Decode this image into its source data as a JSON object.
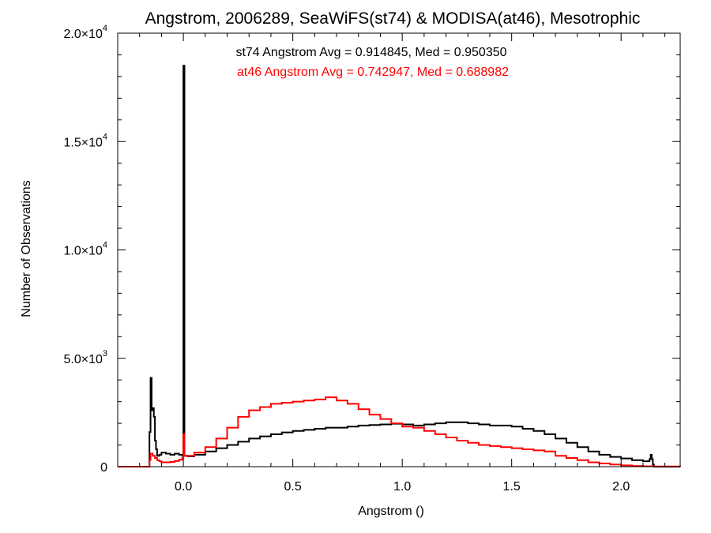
{
  "chart_data": {
    "type": "line",
    "title": "Angstrom, 2006289, SeaWiFS(st74) & MODISA(at46), Mesotrophic",
    "xlabel": "Angstrom ()",
    "ylabel": "Number of Observations",
    "xlim": [
      -0.3,
      2.27
    ],
    "ylim": [
      0,
      20000
    ],
    "x_ticks": [
      0.0,
      0.5,
      1.0,
      1.5,
      2.0
    ],
    "x_tick_labels": [
      "0.0",
      "0.5",
      "1.0",
      "1.5",
      "2.0"
    ],
    "y_ticks": [
      0,
      5000,
      10000,
      15000,
      20000
    ],
    "y_tick_labels": [
      {
        "mant": "0",
        "exp": ""
      },
      {
        "mant": "5.0×10",
        "exp": "3"
      },
      {
        "mant": "1.0×10",
        "exp": "4"
      },
      {
        "mant": "1.5×10",
        "exp": "4"
      },
      {
        "mant": "2.0×10",
        "exp": "4"
      }
    ],
    "annotations": [
      {
        "text": "st74 Angstrom Avg = 0.914845, Med = 0.950350",
        "color": "#000000"
      },
      {
        "text": "at46 Angstrom Avg = 0.742947, Med = 0.688982",
        "color": "#ff0000"
      }
    ],
    "series": [
      {
        "color": "#000000",
        "style": "step",
        "points": [
          [
            -0.3,
            0
          ],
          [
            -0.16,
            0
          ],
          [
            -0.155,
            1600
          ],
          [
            -0.15,
            4100
          ],
          [
            -0.145,
            2600
          ],
          [
            -0.14,
            2700
          ],
          [
            -0.135,
            2300
          ],
          [
            -0.13,
            1200
          ],
          [
            -0.125,
            800
          ],
          [
            -0.12,
            500
          ],
          [
            -0.11,
            550
          ],
          [
            -0.1,
            650
          ],
          [
            -0.08,
            600
          ],
          [
            -0.06,
            550
          ],
          [
            -0.04,
            600
          ],
          [
            -0.02,
            550
          ],
          [
            -0.005,
            500
          ],
          [
            0.0,
            18500
          ],
          [
            0.005,
            500
          ],
          [
            0.02,
            480
          ],
          [
            0.05,
            550
          ],
          [
            0.1,
            700
          ],
          [
            0.15,
            850
          ],
          [
            0.2,
            1000
          ],
          [
            0.25,
            1150
          ],
          [
            0.3,
            1300
          ],
          [
            0.35,
            1400
          ],
          [
            0.4,
            1500
          ],
          [
            0.45,
            1580
          ],
          [
            0.5,
            1650
          ],
          [
            0.55,
            1700
          ],
          [
            0.6,
            1750
          ],
          [
            0.65,
            1800
          ],
          [
            0.7,
            1800
          ],
          [
            0.75,
            1850
          ],
          [
            0.8,
            1900
          ],
          [
            0.85,
            1920
          ],
          [
            0.9,
            1950
          ],
          [
            0.95,
            1980
          ],
          [
            1.0,
            1950
          ],
          [
            1.05,
            1900
          ],
          [
            1.1,
            1950
          ],
          [
            1.15,
            2000
          ],
          [
            1.2,
            2050
          ],
          [
            1.25,
            2050
          ],
          [
            1.3,
            2000
          ],
          [
            1.35,
            1950
          ],
          [
            1.4,
            1900
          ],
          [
            1.45,
            1900
          ],
          [
            1.5,
            1850
          ],
          [
            1.55,
            1750
          ],
          [
            1.6,
            1650
          ],
          [
            1.65,
            1500
          ],
          [
            1.7,
            1300
          ],
          [
            1.75,
            1100
          ],
          [
            1.8,
            900
          ],
          [
            1.85,
            700
          ],
          [
            1.9,
            550
          ],
          [
            1.95,
            450
          ],
          [
            2.0,
            380
          ],
          [
            2.05,
            300
          ],
          [
            2.1,
            250
          ],
          [
            2.13,
            350
          ],
          [
            2.135,
            550
          ],
          [
            2.14,
            350
          ],
          [
            2.145,
            100
          ],
          [
            2.15,
            0
          ],
          [
            2.27,
            0
          ]
        ]
      },
      {
        "color": "#ff0000",
        "style": "step",
        "points": [
          [
            -0.3,
            0
          ],
          [
            -0.16,
            0
          ],
          [
            -0.155,
            300
          ],
          [
            -0.15,
            600
          ],
          [
            -0.14,
            500
          ],
          [
            -0.13,
            400
          ],
          [
            -0.12,
            300
          ],
          [
            -0.11,
            250
          ],
          [
            -0.1,
            200
          ],
          [
            -0.08,
            200
          ],
          [
            -0.06,
            220
          ],
          [
            -0.04,
            260
          ],
          [
            -0.02,
            320
          ],
          [
            -0.005,
            400
          ],
          [
            0.0,
            1500
          ],
          [
            0.005,
            500
          ],
          [
            0.02,
            500
          ],
          [
            0.05,
            650
          ],
          [
            0.1,
            900
          ],
          [
            0.15,
            1300
          ],
          [
            0.2,
            1800
          ],
          [
            0.25,
            2300
          ],
          [
            0.3,
            2600
          ],
          [
            0.35,
            2750
          ],
          [
            0.4,
            2900
          ],
          [
            0.45,
            2950
          ],
          [
            0.5,
            3000
          ],
          [
            0.55,
            3050
          ],
          [
            0.6,
            3100
          ],
          [
            0.65,
            3200
          ],
          [
            0.7,
            3050
          ],
          [
            0.75,
            2900
          ],
          [
            0.8,
            2650
          ],
          [
            0.85,
            2400
          ],
          [
            0.9,
            2200
          ],
          [
            0.95,
            2000
          ],
          [
            1.0,
            1850
          ],
          [
            1.05,
            1800
          ],
          [
            1.1,
            1650
          ],
          [
            1.15,
            1500
          ],
          [
            1.2,
            1350
          ],
          [
            1.25,
            1200
          ],
          [
            1.3,
            1100
          ],
          [
            1.35,
            1000
          ],
          [
            1.4,
            950
          ],
          [
            1.45,
            900
          ],
          [
            1.5,
            850
          ],
          [
            1.55,
            800
          ],
          [
            1.6,
            750
          ],
          [
            1.65,
            700
          ],
          [
            1.7,
            500
          ],
          [
            1.75,
            400
          ],
          [
            1.8,
            300
          ],
          [
            1.85,
            200
          ],
          [
            1.9,
            150
          ],
          [
            1.95,
            100
          ],
          [
            2.0,
            60
          ],
          [
            2.05,
            30
          ],
          [
            2.1,
            20
          ],
          [
            2.15,
            10
          ],
          [
            2.27,
            0
          ]
        ]
      }
    ]
  }
}
